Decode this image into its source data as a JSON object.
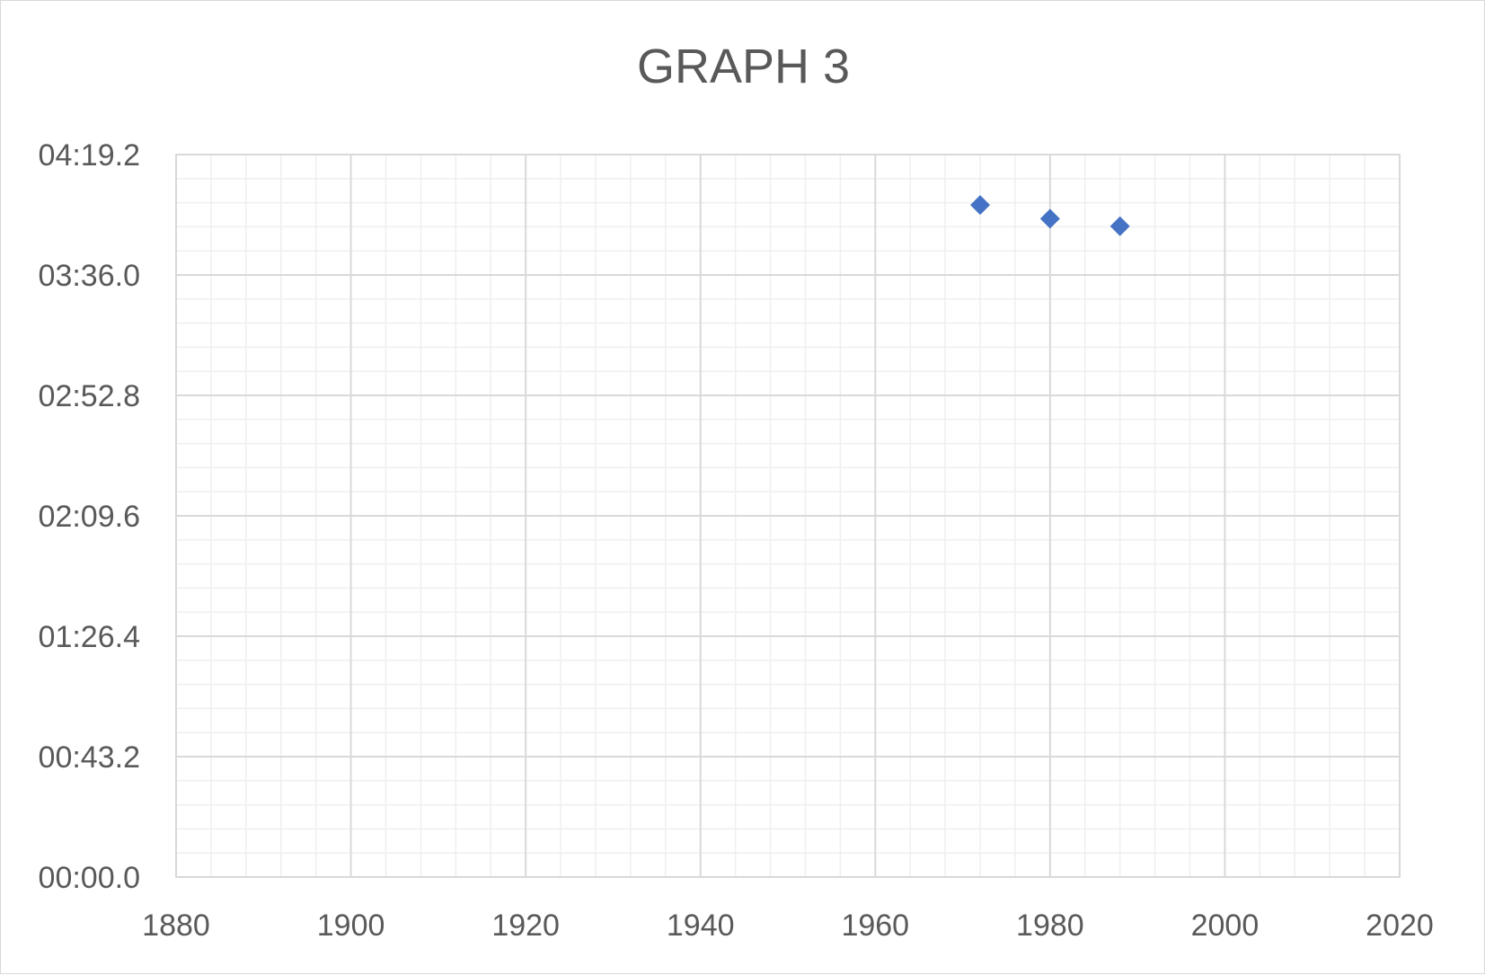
{
  "chart_data": {
    "type": "scatter",
    "title": "GRAPH 3",
    "xlabel": "",
    "ylabel": "",
    "xlim": [
      1880,
      2020
    ],
    "ylim": [
      "00:00.0",
      "04:19.2"
    ],
    "x_ticks": [
      "1880",
      "1900",
      "1920",
      "1940",
      "1960",
      "1980",
      "2000",
      "2020"
    ],
    "y_ticks": [
      "00:00.0",
      "00:43.2",
      "01:26.4",
      "02:09.6",
      "02:52.8",
      "03:36.0",
      "04:19.2"
    ],
    "grid": true,
    "minor_grid": true,
    "series": [
      {
        "color": "#4472c4",
        "marker": "diamond",
        "points": [
          {
            "x": 1972,
            "y": "04:01.1"
          },
          {
            "x": 1980,
            "y": "03:56.2"
          },
          {
            "x": 1988,
            "y": "03:53.5"
          }
        ]
      }
    ]
  }
}
